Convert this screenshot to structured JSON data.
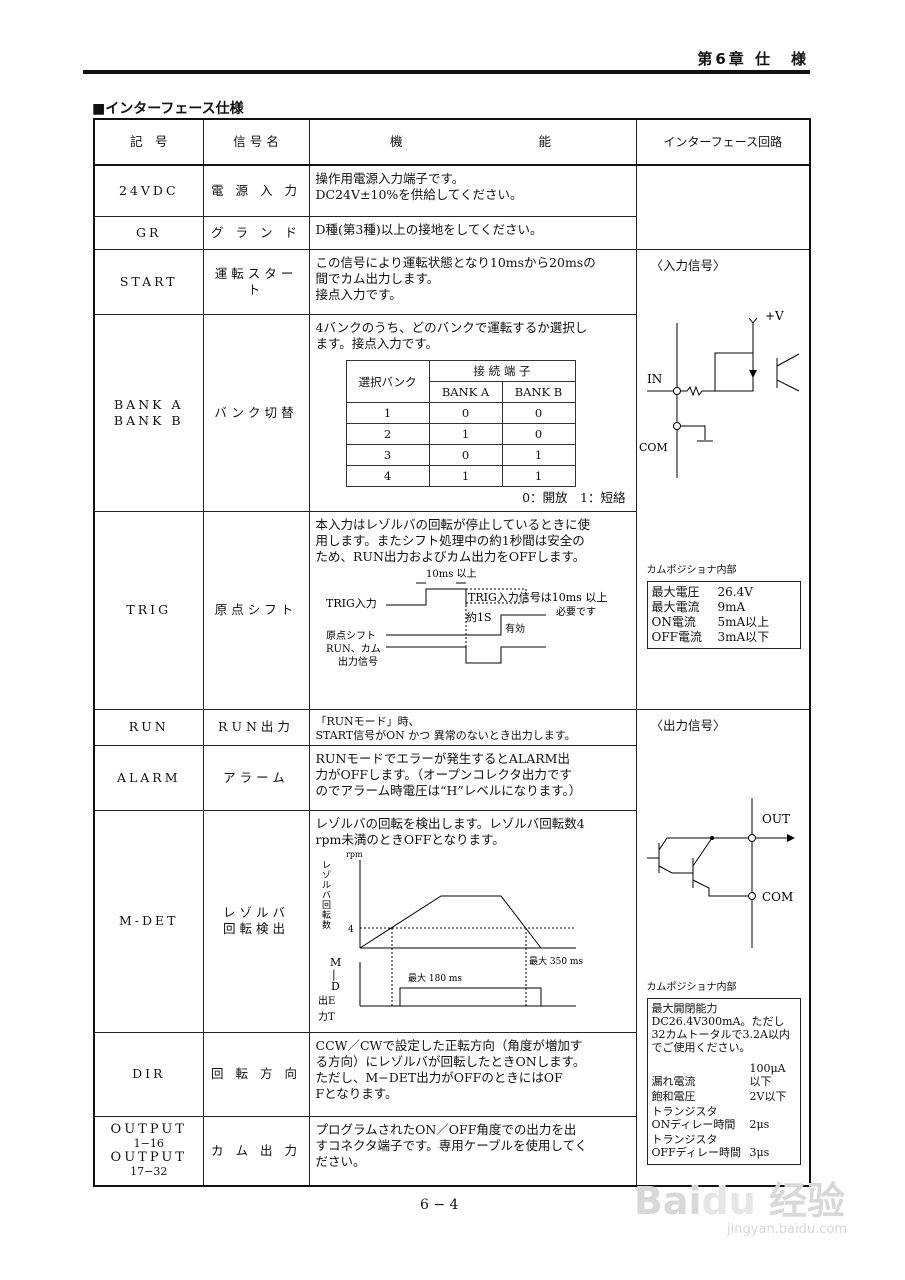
{
  "header": {
    "chapter": "第6章 仕　様"
  },
  "section_title": "■インターフェース仕様",
  "table": {
    "columns": [
      "記　号",
      "信 号 名",
      "機　　　　　　　　能",
      "インターフェース回路"
    ],
    "rows": [
      {
        "symbol": "24VDC",
        "name": "電 源 入 力",
        "function": [
          "操作用電源入力端子です。",
          "DC24V±10%を供給してください。"
        ]
      },
      {
        "symbol": "GR",
        "name": "グ ラ ン ド",
        "function": [
          "D種(第3種)以上の接地をしてください。"
        ]
      },
      {
        "symbol": "START",
        "name": "運転スタート",
        "function": [
          "この信号により運転状態となり10msから20msの",
          "間でカム出力します。",
          "接点入力です。"
        ]
      },
      {
        "symbol": "BANK A\nBANK B",
        "name": "バンク切替",
        "function": [
          "4バンクのうち、どのバンクで運転するか選択し",
          "ます。接点入力です。"
        ]
      },
      {
        "symbol": "TRIG",
        "name": "原点シフト",
        "function": [
          "本入力はレゾルバの回転が停止しているときに使",
          "用します。またシフト処理中の約1秒間は安全の",
          "ため、RUN出力およびカム出力をOFFします。"
        ]
      },
      {
        "symbol": "RUN",
        "name": "RUN出力",
        "function": [
          "「RUNモード」時、",
          "START信号がON かつ 異常のないとき出力します。"
        ]
      },
      {
        "symbol": "ALARM",
        "name": "アラーム",
        "function": [
          "RUNモードでエラーが発生するとALARM出",
          "力がOFFします。（オープンコレクタ出力です",
          "のでアラーム時電圧は“H”レベルになります。）"
        ]
      },
      {
        "symbol": "M-DET",
        "name": "レゾルバ\n回転検出",
        "function": [
          "レゾルバの回転を検出します。レゾルバ回転数4",
          "rpm未満のときOFFとなります。"
        ]
      },
      {
        "symbol": "DIR",
        "name": "回 転 方 向",
        "function": [
          "CCW／CWで設定した正転方向（角度が増加す",
          "る方向）にレゾルバが回転したときONします。",
          "ただし、M−DET出力がOFFのときにはOF",
          "Fとなります。"
        ]
      },
      {
        "symbol": "OUTPUT\n1−16\nOUTPUT\n17−32",
        "name": "カ ム 出 力",
        "function": [
          "プログラムされたON／OFF角度での出力を出",
          "すコネクタ端子です。専用ケーブルを使用してく",
          "ださい。"
        ]
      }
    ]
  },
  "bank_table": {
    "header_left": "選択バンク",
    "header_group": "接 続 端 子",
    "cols": [
      "BANK A",
      "BANK B"
    ],
    "rows": [
      [
        "1",
        "0",
        "0"
      ],
      [
        "2",
        "1",
        "0"
      ],
      [
        "3",
        "0",
        "1"
      ],
      [
        "4",
        "1",
        "1"
      ]
    ],
    "note": "0：開放　1：短絡"
  },
  "trig_diagram": {
    "t1": "10ms 以上",
    "l1": "TRIG入力",
    "note1": "TRIG入力信号は10ms 以上",
    "note2": "必要です",
    "t2": "約1S",
    "valid": "有効",
    "l2": "原点シフト",
    "l3": "RUN、カム",
    "l4": "出力信号"
  },
  "mdet_diagram": {
    "unit": "rpm",
    "ylabel": "レゾルバ回転数",
    "level": "4",
    "out_label": "M−DET出力",
    "t1": "最大 180 ms",
    "t2": "最大 350 ms"
  },
  "input_circuit": {
    "title": "〈入力信号〉",
    "vplus": "+V",
    "in": "IN",
    "com": "COM",
    "caption": "カムポジショナ内部",
    "specs": [
      [
        "最大電圧",
        "26.4V"
      ],
      [
        "最大電流",
        "9mA"
      ],
      [
        "ON電流",
        "5mA以上"
      ],
      [
        "OFF電流",
        "3mA以下"
      ]
    ]
  },
  "output_circuit": {
    "title": "〈出力信号〉",
    "out": "OUT",
    "com": "COM",
    "caption": "カムポジショナ内部",
    "spec_head": [
      "最大開閉能力",
      "DC26.4V300mA。ただし",
      "32カムトータルで3.2A以内",
      "でご使用ください。"
    ],
    "specs": [
      [
        "漏れ電流",
        "100μA以下"
      ],
      [
        "飽和電圧",
        "2V以下"
      ],
      [
        "トランジスタ\nONディレー時間",
        "2μs"
      ],
      [
        "トランジスタ\nOFFディレー時間",
        "3μs"
      ]
    ]
  },
  "page_number": "6 − 4",
  "watermark": {
    "logo": "Baidu 经验",
    "url": "jingyan.baidu.com"
  }
}
